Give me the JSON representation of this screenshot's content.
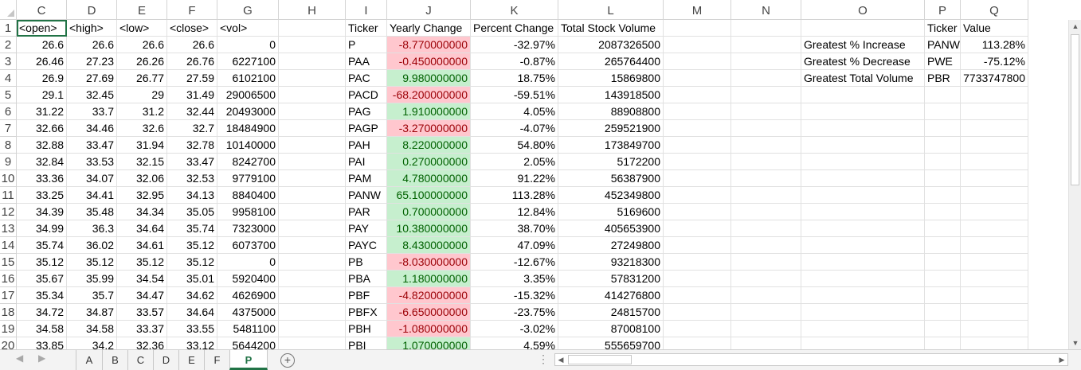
{
  "columns": [
    "C",
    "D",
    "E",
    "F",
    "G",
    "H",
    "I",
    "J",
    "K",
    "L",
    "M",
    "N",
    "O",
    "P",
    "Q"
  ],
  "row_numbers": [
    "1",
    "2",
    "3",
    "4",
    "5",
    "6",
    "7",
    "8",
    "9",
    "10",
    "11",
    "12",
    "13",
    "14",
    "15",
    "16",
    "17",
    "18",
    "19",
    "20"
  ],
  "headers": {
    "open": "<open>",
    "high": "<high>",
    "low": "<low>",
    "close": "<close>",
    "vol": "<vol>",
    "ticker": "Ticker",
    "yearly_change": "Yearly Change",
    "percent_change": "Percent Change",
    "total_volume": "Total Stock Volume",
    "summary_ticker": "Ticker",
    "summary_value": "Value"
  },
  "rows": [
    {
      "open": "26.6",
      "high": "26.6",
      "low": "26.6",
      "close": "26.6",
      "vol": "0",
      "ticker": "P",
      "change": "-8.770000000",
      "change_sign": "neg",
      "pct": "-32.97%",
      "total": "2087326500"
    },
    {
      "open": "26.46",
      "high": "27.23",
      "low": "26.26",
      "close": "26.76",
      "vol": "6227100",
      "ticker": "PAA",
      "change": "-0.450000000",
      "change_sign": "neg",
      "pct": "-0.87%",
      "total": "265764400"
    },
    {
      "open": "26.9",
      "high": "27.69",
      "low": "26.77",
      "close": "27.59",
      "vol": "6102100",
      "ticker": "PAC",
      "change": "9.980000000",
      "change_sign": "pos",
      "pct": "18.75%",
      "total": "15869800"
    },
    {
      "open": "29.1",
      "high": "32.45",
      "low": "29",
      "close": "31.49",
      "vol": "29006500",
      "ticker": "PACD",
      "change": "-68.200000000",
      "change_sign": "neg",
      "pct": "-59.51%",
      "total": "143918500"
    },
    {
      "open": "31.22",
      "high": "33.7",
      "low": "31.2",
      "close": "32.44",
      "vol": "20493000",
      "ticker": "PAG",
      "change": "1.910000000",
      "change_sign": "pos",
      "pct": "4.05%",
      "total": "88908800"
    },
    {
      "open": "32.66",
      "high": "34.46",
      "low": "32.6",
      "close": "32.7",
      "vol": "18484900",
      "ticker": "PAGP",
      "change": "-3.270000000",
      "change_sign": "neg",
      "pct": "-4.07%",
      "total": "259521900"
    },
    {
      "open": "32.88",
      "high": "33.47",
      "low": "31.94",
      "close": "32.78",
      "vol": "10140000",
      "ticker": "PAH",
      "change": "8.220000000",
      "change_sign": "pos",
      "pct": "54.80%",
      "total": "173849700"
    },
    {
      "open": "32.84",
      "high": "33.53",
      "low": "32.15",
      "close": "33.47",
      "vol": "8242700",
      "ticker": "PAI",
      "change": "0.270000000",
      "change_sign": "pos",
      "pct": "2.05%",
      "total": "5172200"
    },
    {
      "open": "33.36",
      "high": "34.07",
      "low": "32.06",
      "close": "32.53",
      "vol": "9779100",
      "ticker": "PAM",
      "change": "4.780000000",
      "change_sign": "pos",
      "pct": "91.22%",
      "total": "56387900"
    },
    {
      "open": "33.25",
      "high": "34.41",
      "low": "32.95",
      "close": "34.13",
      "vol": "8840400",
      "ticker": "PANW",
      "change": "65.100000000",
      "change_sign": "pos",
      "pct": "113.28%",
      "total": "452349800"
    },
    {
      "open": "34.39",
      "high": "35.48",
      "low": "34.34",
      "close": "35.05",
      "vol": "9958100",
      "ticker": "PAR",
      "change": "0.700000000",
      "change_sign": "pos",
      "pct": "12.84%",
      "total": "5169600"
    },
    {
      "open": "34.99",
      "high": "36.3",
      "low": "34.64",
      "close": "35.74",
      "vol": "7323000",
      "ticker": "PAY",
      "change": "10.380000000",
      "change_sign": "pos",
      "pct": "38.70%",
      "total": "405653900"
    },
    {
      "open": "35.74",
      "high": "36.02",
      "low": "34.61",
      "close": "35.12",
      "vol": "6073700",
      "ticker": "PAYC",
      "change": "8.430000000",
      "change_sign": "pos",
      "pct": "47.09%",
      "total": "27249800"
    },
    {
      "open": "35.12",
      "high": "35.12",
      "low": "35.12",
      "close": "35.12",
      "vol": "0",
      "ticker": "PB",
      "change": "-8.030000000",
      "change_sign": "neg",
      "pct": "-12.67%",
      "total": "93218300"
    },
    {
      "open": "35.67",
      "high": "35.99",
      "low": "34.54",
      "close": "35.01",
      "vol": "5920400",
      "ticker": "PBA",
      "change": "1.180000000",
      "change_sign": "pos",
      "pct": "3.35%",
      "total": "57831200"
    },
    {
      "open": "35.34",
      "high": "35.7",
      "low": "34.47",
      "close": "34.62",
      "vol": "4626900",
      "ticker": "PBF",
      "change": "-4.820000000",
      "change_sign": "neg",
      "pct": "-15.32%",
      "total": "414276800"
    },
    {
      "open": "34.72",
      "high": "34.87",
      "low": "33.57",
      "close": "34.64",
      "vol": "4375000",
      "ticker": "PBFX",
      "change": "-6.650000000",
      "change_sign": "neg",
      "pct": "-23.75%",
      "total": "24815700"
    },
    {
      "open": "34.58",
      "high": "34.58",
      "low": "33.37",
      "close": "33.55",
      "vol": "5481100",
      "ticker": "PBH",
      "change": "-1.080000000",
      "change_sign": "neg",
      "pct": "-3.02%",
      "total": "87008100"
    },
    {
      "open": "33.85",
      "high": "34.2",
      "low": "32.36",
      "close": "33.12",
      "vol": "5644200",
      "ticker": "PBI",
      "change": "1.070000000",
      "change_sign": "pos",
      "pct": "4.59%",
      "total": "555659700"
    }
  ],
  "summary": [
    {
      "label": "Greatest % Increase",
      "ticker": "PANW",
      "value": "113.28%"
    },
    {
      "label": "Greatest % Decrease",
      "ticker": "PWE",
      "value": "-75.12%"
    },
    {
      "label": "Greatest Total Volume",
      "ticker": "PBR",
      "value": "7733747800"
    }
  ],
  "sheet_tabs": [
    "A",
    "B",
    "C",
    "D",
    "E",
    "F",
    "P"
  ],
  "active_sheet": "P",
  "colors": {
    "neg_fill": "#ffc7ce",
    "neg_text": "#9c0006",
    "pos_fill": "#c6efce",
    "pos_text": "#006100",
    "accent": "#217346"
  }
}
